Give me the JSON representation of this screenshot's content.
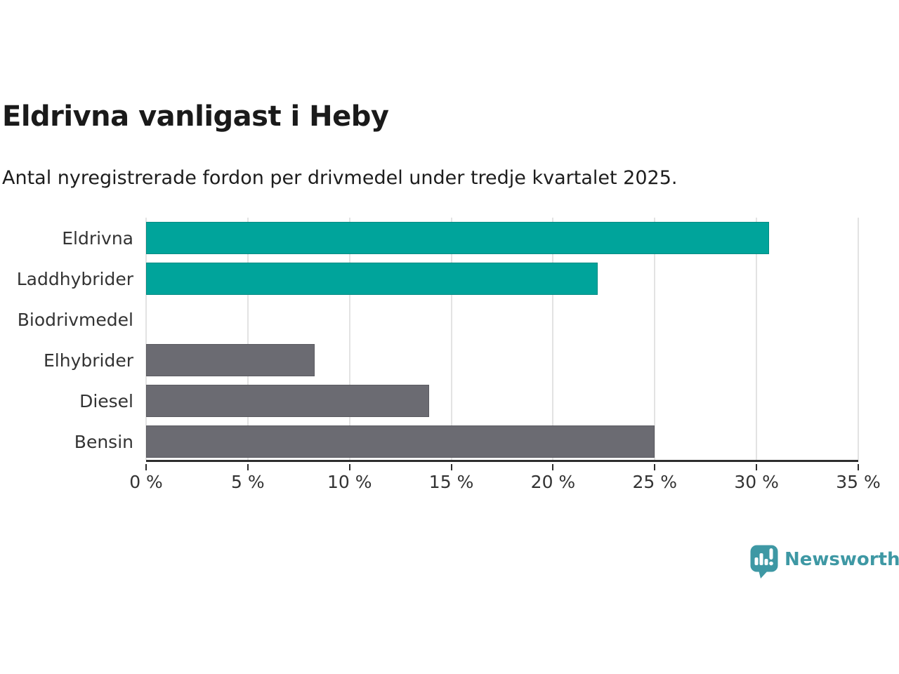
{
  "header": {
    "title": "Eldrivna vanligast i Heby",
    "subtitle": "Antal nyregistrerade fordon per drivmedel under tredje kvartalet 2025."
  },
  "chart_data": {
    "type": "bar",
    "orientation": "horizontal",
    "title": "Eldrivna vanligast i Heby",
    "subtitle": "Antal nyregistrerade fordon per drivmedel under tredje kvartalet 2025.",
    "categories": [
      "Eldrivna",
      "Laddhybrider",
      "Biodrivmedel",
      "Elhybrider",
      "Diesel",
      "Bensin"
    ],
    "values": [
      30.6,
      22.2,
      0,
      8.3,
      13.9,
      25.0
    ],
    "unit": "%",
    "xlabel": "",
    "ylabel": "",
    "xlim": [
      0,
      35
    ],
    "x_ticks": [
      0,
      5,
      10,
      15,
      20,
      25,
      30,
      35
    ],
    "x_tick_labels": [
      "0 %",
      "5 %",
      "10 %",
      "15 %",
      "20 %",
      "25 %",
      "30 %",
      "35 %"
    ],
    "grid": "vertical",
    "legend": "none",
    "bar_colors": [
      "#00a49b",
      "#00a49b",
      "#6b6b72",
      "#6b6b72",
      "#6b6b72",
      "#6b6b72"
    ],
    "highlight_color": "#00a49b",
    "default_bar_color": "#6b6b72",
    "gridline_color": "#e3e3e3",
    "axis_color": "#2e2e2e",
    "tick_label_color": "#333333",
    "category_label_color": "#333333"
  },
  "branding": {
    "brand": "Newsworthy",
    "brand_color": "#3e98a4",
    "logo_icon": "bar-chart-speech-bubble"
  }
}
